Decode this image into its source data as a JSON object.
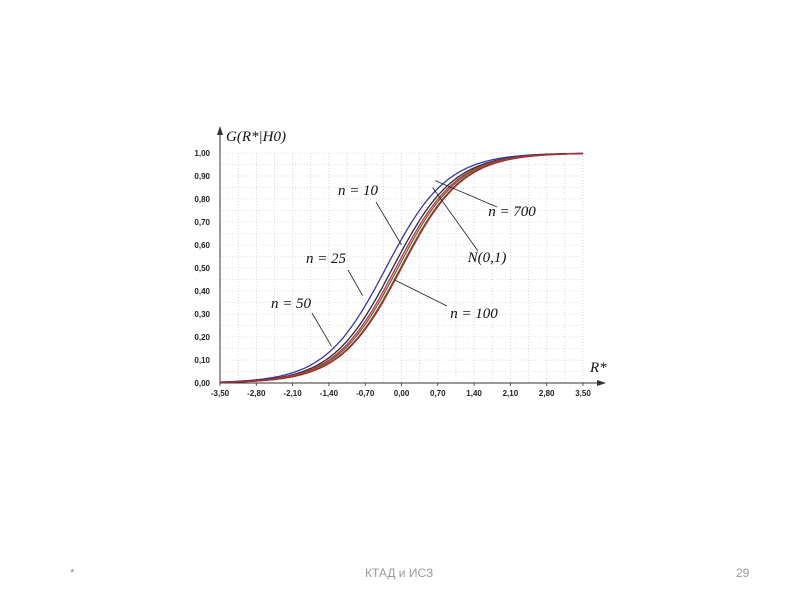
{
  "chart_data": {
    "type": "line",
    "y_axis_title": "G(R*|H0)",
    "x_axis_title": "R*",
    "xlim": [
      -3.5,
      3.5
    ],
    "ylim": [
      0,
      1
    ],
    "x_ticks": [
      "-3,50",
      "-2,80",
      "-2,10",
      "-1,40",
      "-0,70",
      "0,00",
      "0,70",
      "1,40",
      "2,10",
      "2,80",
      "3,50"
    ],
    "y_ticks": [
      "0,00",
      "0,10",
      "0,20",
      "0,30",
      "0,40",
      "0,50",
      "0,60",
      "0,70",
      "0,80",
      "0,90",
      "1,00"
    ],
    "grid": true,
    "series": [
      {
        "name": "n = 10",
        "color": "#3a35a8",
        "shift": 0.3,
        "x": [
          -3.5,
          -3.0,
          -2.5,
          -2.0,
          -1.5,
          -1.0,
          -0.5,
          0.0,
          0.5,
          1.0,
          1.5,
          2.0,
          2.5,
          3.0,
          3.5
        ],
        "y": [
          0.0,
          0.0,
          0.02,
          0.05,
          0.13,
          0.27,
          0.45,
          0.64,
          0.8,
          0.91,
          0.97,
          0.99,
          1.0,
          1.0,
          1.0
        ]
      },
      {
        "name": "n = 25",
        "color": "#2b2b2b",
        "shift": 0.17,
        "x": [
          -3.5,
          -3.0,
          -2.5,
          -2.0,
          -1.5,
          -1.0,
          -0.5,
          0.0,
          0.5,
          1.0,
          1.5,
          2.0,
          2.5,
          3.0,
          3.5
        ],
        "y": [
          0.0,
          0.0,
          0.01,
          0.04,
          0.11,
          0.23,
          0.4,
          0.58,
          0.75,
          0.88,
          0.95,
          0.99,
          1.0,
          1.0,
          1.0
        ]
      },
      {
        "name": "n = 50",
        "color": "#b0306a",
        "shift": 0.11,
        "x": [
          -3.5,
          -3.0,
          -2.5,
          -2.0,
          -1.5,
          -1.0,
          -0.5,
          0.0,
          0.5,
          1.0,
          1.5,
          2.0,
          2.5,
          3.0,
          3.5
        ],
        "y": [
          0.0,
          0.0,
          0.01,
          0.03,
          0.09,
          0.21,
          0.37,
          0.56,
          0.73,
          0.86,
          0.95,
          0.98,
          1.0,
          1.0,
          1.0
        ]
      },
      {
        "name": "n = 100",
        "color": "#8a5a20",
        "shift": 0.07,
        "x": [
          -3.5,
          -3.0,
          -2.5,
          -2.0,
          -1.5,
          -1.0,
          -0.5,
          0.0,
          0.5,
          1.0,
          1.5,
          2.0,
          2.5,
          3.0,
          3.5
        ],
        "y": [
          0.0,
          0.0,
          0.01,
          0.03,
          0.09,
          0.19,
          0.35,
          0.54,
          0.72,
          0.85,
          0.94,
          0.98,
          1.0,
          1.0,
          1.0
        ]
      },
      {
        "name": "n = 700",
        "color": "#3a7a3a",
        "shift": 0.02,
        "x": [
          -3.5,
          -3.0,
          -2.5,
          -2.0,
          -1.5,
          -1.0,
          -0.5,
          0.0,
          0.5,
          1.0,
          1.5,
          2.0,
          2.5,
          3.0,
          3.5
        ],
        "y": [
          0.0,
          0.0,
          0.01,
          0.02,
          0.07,
          0.17,
          0.32,
          0.51,
          0.7,
          0.84,
          0.94,
          0.98,
          1.0,
          1.0,
          1.0
        ]
      },
      {
        "name": "N(0,1)",
        "color": "#b8202a",
        "shift": 0.0,
        "x": [
          -3.5,
          -3.0,
          -2.5,
          -2.0,
          -1.5,
          -1.0,
          -0.5,
          0.0,
          0.5,
          1.0,
          1.5,
          2.0,
          2.5,
          3.0,
          3.5
        ],
        "y": [
          0.0,
          0.0,
          0.01,
          0.02,
          0.07,
          0.16,
          0.31,
          0.5,
          0.69,
          0.84,
          0.93,
          0.98,
          0.99,
          1.0,
          1.0
        ]
      }
    ],
    "annotations": [
      {
        "text": "n = 10",
        "series": "n = 10",
        "x": 0.0,
        "y": 0.6
      },
      {
        "text": "n = 700",
        "series": "n = 700",
        "x": 0.65,
        "y": 0.88
      },
      {
        "text": "N(0,1)",
        "series": "N(0,1)",
        "x": 0.6,
        "y": 0.85
      },
      {
        "text": "n = 25",
        "series": "n = 25",
        "x": -0.75,
        "y": 0.38
      },
      {
        "text": "n = 100",
        "series": "n = 100",
        "x": -0.15,
        "y": 0.45
      },
      {
        "text": "n = 50",
        "series": "n = 50",
        "x": -1.35,
        "y": 0.16
      }
    ],
    "caption": []
  },
  "footer": {
    "left": "*",
    "center": "КТАД и ИСЗ",
    "right": "29"
  }
}
